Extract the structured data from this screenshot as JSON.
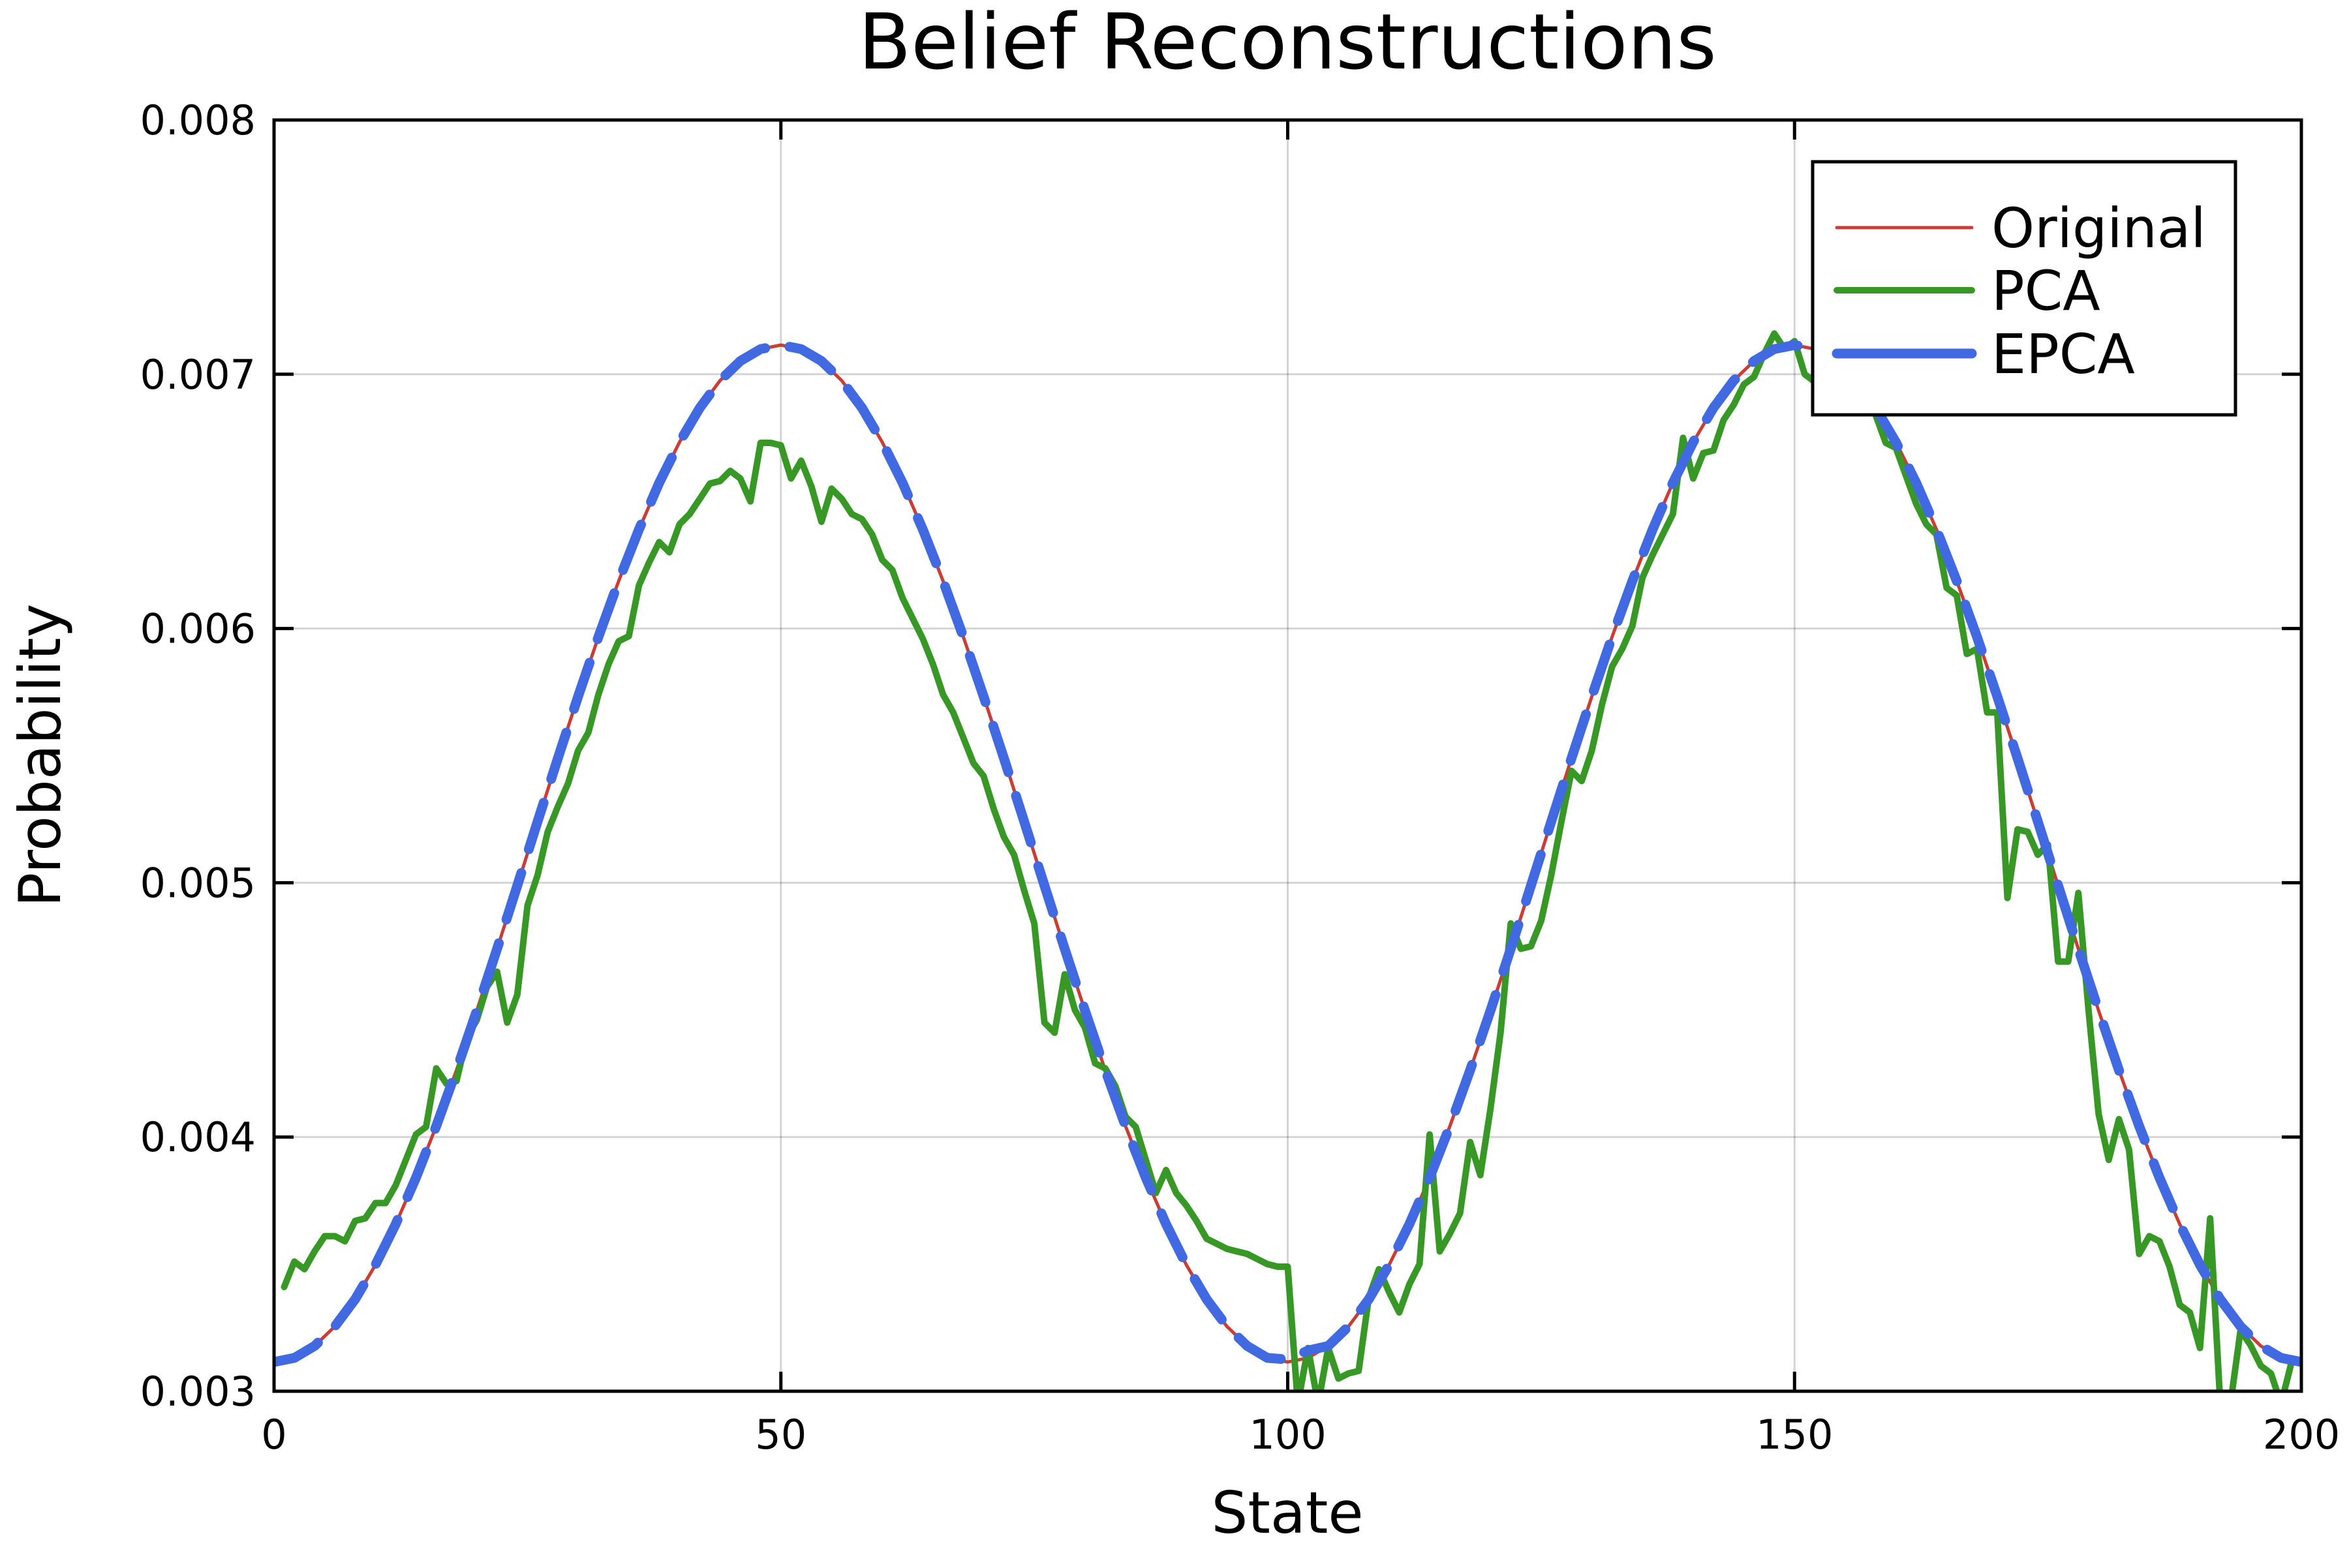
{
  "chart_data": {
    "type": "line",
    "title": "Belief Reconstructions",
    "xlabel": "State",
    "ylabel": "Probability",
    "xlim": [
      0,
      200
    ],
    "ylim": [
      0.003,
      0.008
    ],
    "xticks": [
      0,
      50,
      100,
      150,
      200
    ],
    "xtick_labels": [
      "0",
      "50",
      "100",
      "150",
      "200"
    ],
    "yticks": [
      0.003,
      0.004,
      0.005,
      0.006,
      0.007,
      0.008
    ],
    "ytick_labels": [
      "0.003",
      "0.004",
      "0.005",
      "0.006",
      "0.007",
      "0.008"
    ],
    "grid": true,
    "legend_position": "top-right",
    "series": [
      {
        "name": "Original",
        "color": "#CB3C33",
        "style": "solid",
        "x_start": 0,
        "x_step": 2,
        "values": [
          0.003115,
          0.003131,
          0.003178,
          0.003255,
          0.003362,
          0.003497,
          0.003657,
          0.00384,
          0.004043,
          0.004263,
          0.004497,
          0.00474,
          0.004989,
          0.005241,
          0.00549,
          0.005733,
          0.005967,
          0.006187,
          0.00639,
          0.006573,
          0.006733,
          0.006868,
          0.006975,
          0.007052,
          0.007099,
          0.007115,
          0.007099,
          0.007052,
          0.006975,
          0.006868,
          0.006733,
          0.006573,
          0.00639,
          0.006187,
          0.005967,
          0.005733,
          0.00549,
          0.005241,
          0.004989,
          0.00474,
          0.004497,
          0.004263,
          0.004043,
          0.00384,
          0.003657,
          0.003497,
          0.003362,
          0.003255,
          0.003178,
          0.003131,
          0.003115,
          0.003131,
          0.003178,
          0.003255,
          0.003362,
          0.003497,
          0.003657,
          0.00384,
          0.004043,
          0.004263,
          0.004497,
          0.00474,
          0.004989,
          0.005241,
          0.00549,
          0.005733,
          0.005967,
          0.006187,
          0.00639,
          0.006573,
          0.006733,
          0.006868,
          0.006975,
          0.007052,
          0.007099,
          0.007115,
          0.007099,
          0.007052,
          0.006975,
          0.006868,
          0.006733,
          0.006573,
          0.00639,
          0.006187,
          0.005967,
          0.005733,
          0.00549,
          0.005241,
          0.004989,
          0.00474,
          0.004497,
          0.004263,
          0.004043,
          0.00384,
          0.003657,
          0.003497,
          0.003362,
          0.003255,
          0.003178,
          0.003131,
          0.003115
        ]
      },
      {
        "name": "PCA",
        "color": "#389826",
        "style": "solid",
        "x_start": 1,
        "x_step": 1,
        "values": [
          0.00341,
          0.00351,
          0.00348,
          0.00355,
          0.00361,
          0.00361,
          0.00359,
          0.00367,
          0.00368,
          0.00374,
          0.00374,
          0.00381,
          0.00391,
          0.00401,
          0.00404,
          0.00427,
          0.00421,
          0.00422,
          0.00439,
          0.00446,
          0.00459,
          0.00465,
          0.00445,
          0.00456,
          0.00491,
          0.00503,
          0.0052,
          0.0053,
          0.00539,
          0.00552,
          0.00559,
          0.00574,
          0.00586,
          0.00595,
          0.00597,
          0.00617,
          0.00626,
          0.00634,
          0.0063,
          0.00641,
          0.00645,
          0.00651,
          0.00657,
          0.00658,
          0.00662,
          0.00659,
          0.0065,
          0.00673,
          0.00673,
          0.00672,
          0.00659,
          0.00666,
          0.00656,
          0.00642,
          0.00655,
          0.00651,
          0.00645,
          0.00643,
          0.00637,
          0.00627,
          0.00623,
          0.00612,
          0.00604,
          0.00596,
          0.00586,
          0.00574,
          0.00567,
          0.00557,
          0.00547,
          0.00542,
          0.00529,
          0.00518,
          0.00511,
          0.00497,
          0.00484,
          0.00445,
          0.00441,
          0.00464,
          0.0045,
          0.00443,
          0.00429,
          0.00427,
          0.0042,
          0.00408,
          0.00404,
          0.00391,
          0.00378,
          0.00387,
          0.00378,
          0.00373,
          0.00367,
          0.0036,
          0.00358,
          0.00356,
          0.00355,
          0.00354,
          0.00352,
          0.0035,
          0.00349,
          0.00349,
          0.00295,
          0.00317,
          0.00295,
          0.00317,
          0.00305,
          0.00307,
          0.00308,
          0.00337,
          0.00348,
          0.00339,
          0.00331,
          0.00342,
          0.0035,
          0.00401,
          0.00355,
          0.00362,
          0.0037,
          0.00398,
          0.00385,
          0.00411,
          0.00441,
          0.00484,
          0.00474,
          0.00475,
          0.00485,
          0.00503,
          0.00524,
          0.00544,
          0.0054,
          0.00552,
          0.0057,
          0.00585,
          0.00592,
          0.00601,
          0.0062,
          0.00629,
          0.00637,
          0.00645,
          0.00675,
          0.00659,
          0.00669,
          0.0067,
          0.00682,
          0.00688,
          0.00696,
          0.00699,
          0.00708,
          0.00716,
          0.0071,
          0.00713,
          0.007,
          0.00697,
          0.00709,
          0.0071,
          0.00705,
          0.007,
          0.00692,
          0.00684,
          0.00673,
          0.00671,
          0.0066,
          0.00649,
          0.00641,
          0.00637,
          0.00616,
          0.00613,
          0.0059,
          0.00592,
          0.00567,
          0.00567,
          0.00494,
          0.00521,
          0.0052,
          0.00511,
          0.00515,
          0.00469,
          0.00469,
          0.00496,
          0.0045,
          0.00409,
          0.00391,
          0.00407,
          0.00395,
          0.00354,
          0.00361,
          0.00359,
          0.00349,
          0.00334,
          0.00331,
          0.00317,
          0.00368,
          0.00295,
          0.00295,
          0.00324,
          0.00318,
          0.0031,
          0.00307,
          0.00295,
          0.00311
        ]
      },
      {
        "name": "EPCA",
        "color": "#4169E1",
        "style": "dashed",
        "x_start": 0,
        "x_step": 2,
        "values": [
          0.003115,
          0.003131,
          0.003178,
          0.003255,
          0.003362,
          0.003497,
          0.003657,
          0.00384,
          0.004043,
          0.004263,
          0.004497,
          0.00474,
          0.004989,
          0.005241,
          0.00549,
          0.005733,
          0.005967,
          0.006187,
          0.00639,
          0.006573,
          0.006733,
          0.006868,
          0.006975,
          0.007052,
          0.007099,
          0.007115,
          0.007099,
          0.007052,
          0.006975,
          0.006868,
          0.006733,
          0.006573,
          0.00639,
          0.006187,
          0.005967,
          0.005733,
          0.00549,
          0.005241,
          0.004989,
          0.00474,
          0.004497,
          0.004263,
          0.004043,
          0.00384,
          0.003657,
          0.003497,
          0.003362,
          0.003255,
          0.003178,
          0.003131,
          0.003125,
          0.00316,
          0.003178,
          0.003255,
          0.003362,
          0.003497,
          0.003657,
          0.00384,
          0.004043,
          0.004263,
          0.004497,
          0.00474,
          0.004989,
          0.005241,
          0.00549,
          0.005733,
          0.005967,
          0.006187,
          0.00639,
          0.006573,
          0.006733,
          0.006868,
          0.006975,
          0.007052,
          0.007099,
          0.007115,
          0.007099,
          0.007052,
          0.006975,
          0.006868,
          0.006733,
          0.006573,
          0.00639,
          0.006187,
          0.005967,
          0.005733,
          0.00549,
          0.005241,
          0.004989,
          0.00474,
          0.004497,
          0.004263,
          0.004043,
          0.00384,
          0.003657,
          0.003497,
          0.003362,
          0.003255,
          0.003178,
          0.003131,
          0.003115
        ]
      }
    ]
  }
}
